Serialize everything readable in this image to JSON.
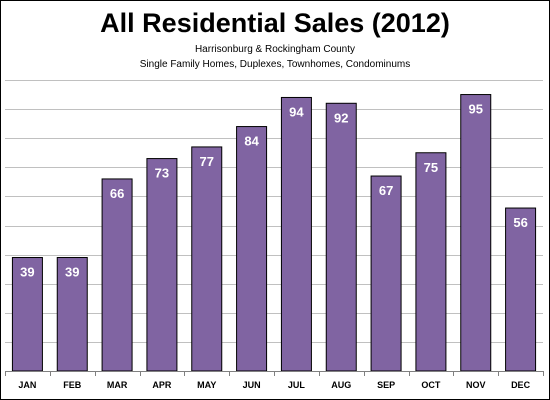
{
  "chart_data": {
    "type": "bar",
    "title": "All Residential Sales (2012)",
    "subtitle_lines": [
      "Harrisonburg & Rockingham County",
      "Single Family Homes, Duplexes, Townhomes, Condominums"
    ],
    "categories": [
      "JAN",
      "FEB",
      "MAR",
      "APR",
      "MAY",
      "JUN",
      "JUL",
      "AUG",
      "SEP",
      "OCT",
      "NOV",
      "DEC"
    ],
    "values": [
      39,
      39,
      66,
      73,
      77,
      84,
      94,
      92,
      67,
      75,
      95,
      56
    ],
    "xlabel": "",
    "ylabel": "",
    "ylim": [
      0,
      100
    ],
    "grid": true,
    "legend": "none",
    "bar_color": "#8064A2",
    "data_labels": "inside-top"
  }
}
